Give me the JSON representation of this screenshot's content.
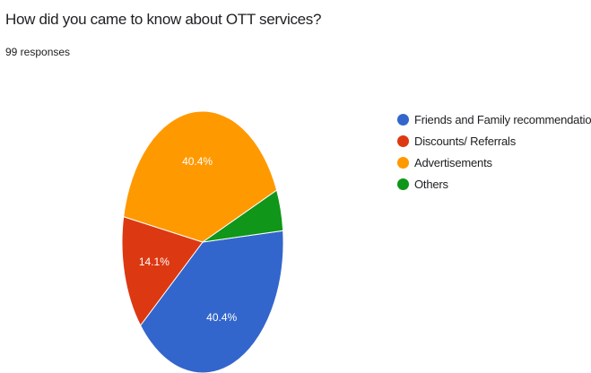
{
  "header": {
    "title": "How did you came to know about OTT services?",
    "responses": "99 responses"
  },
  "chart_data": {
    "type": "pie",
    "title": "How did you came to know about OTT services?",
    "slices": [
      {
        "label": "Friends and Family recommendation.",
        "value": 40.4,
        "display": "40.4%",
        "color": "#3366cc"
      },
      {
        "label": "Discounts/ Referrals",
        "value": 14.1,
        "display": "14.1%",
        "color": "#dc3912"
      },
      {
        "label": "Advertisements",
        "value": 40.4,
        "display": "40.4%",
        "color": "#ff9900"
      },
      {
        "label": "Others",
        "value": 5.1,
        "display": "",
        "color": "#109618"
      }
    ],
    "legend_position": "right"
  }
}
